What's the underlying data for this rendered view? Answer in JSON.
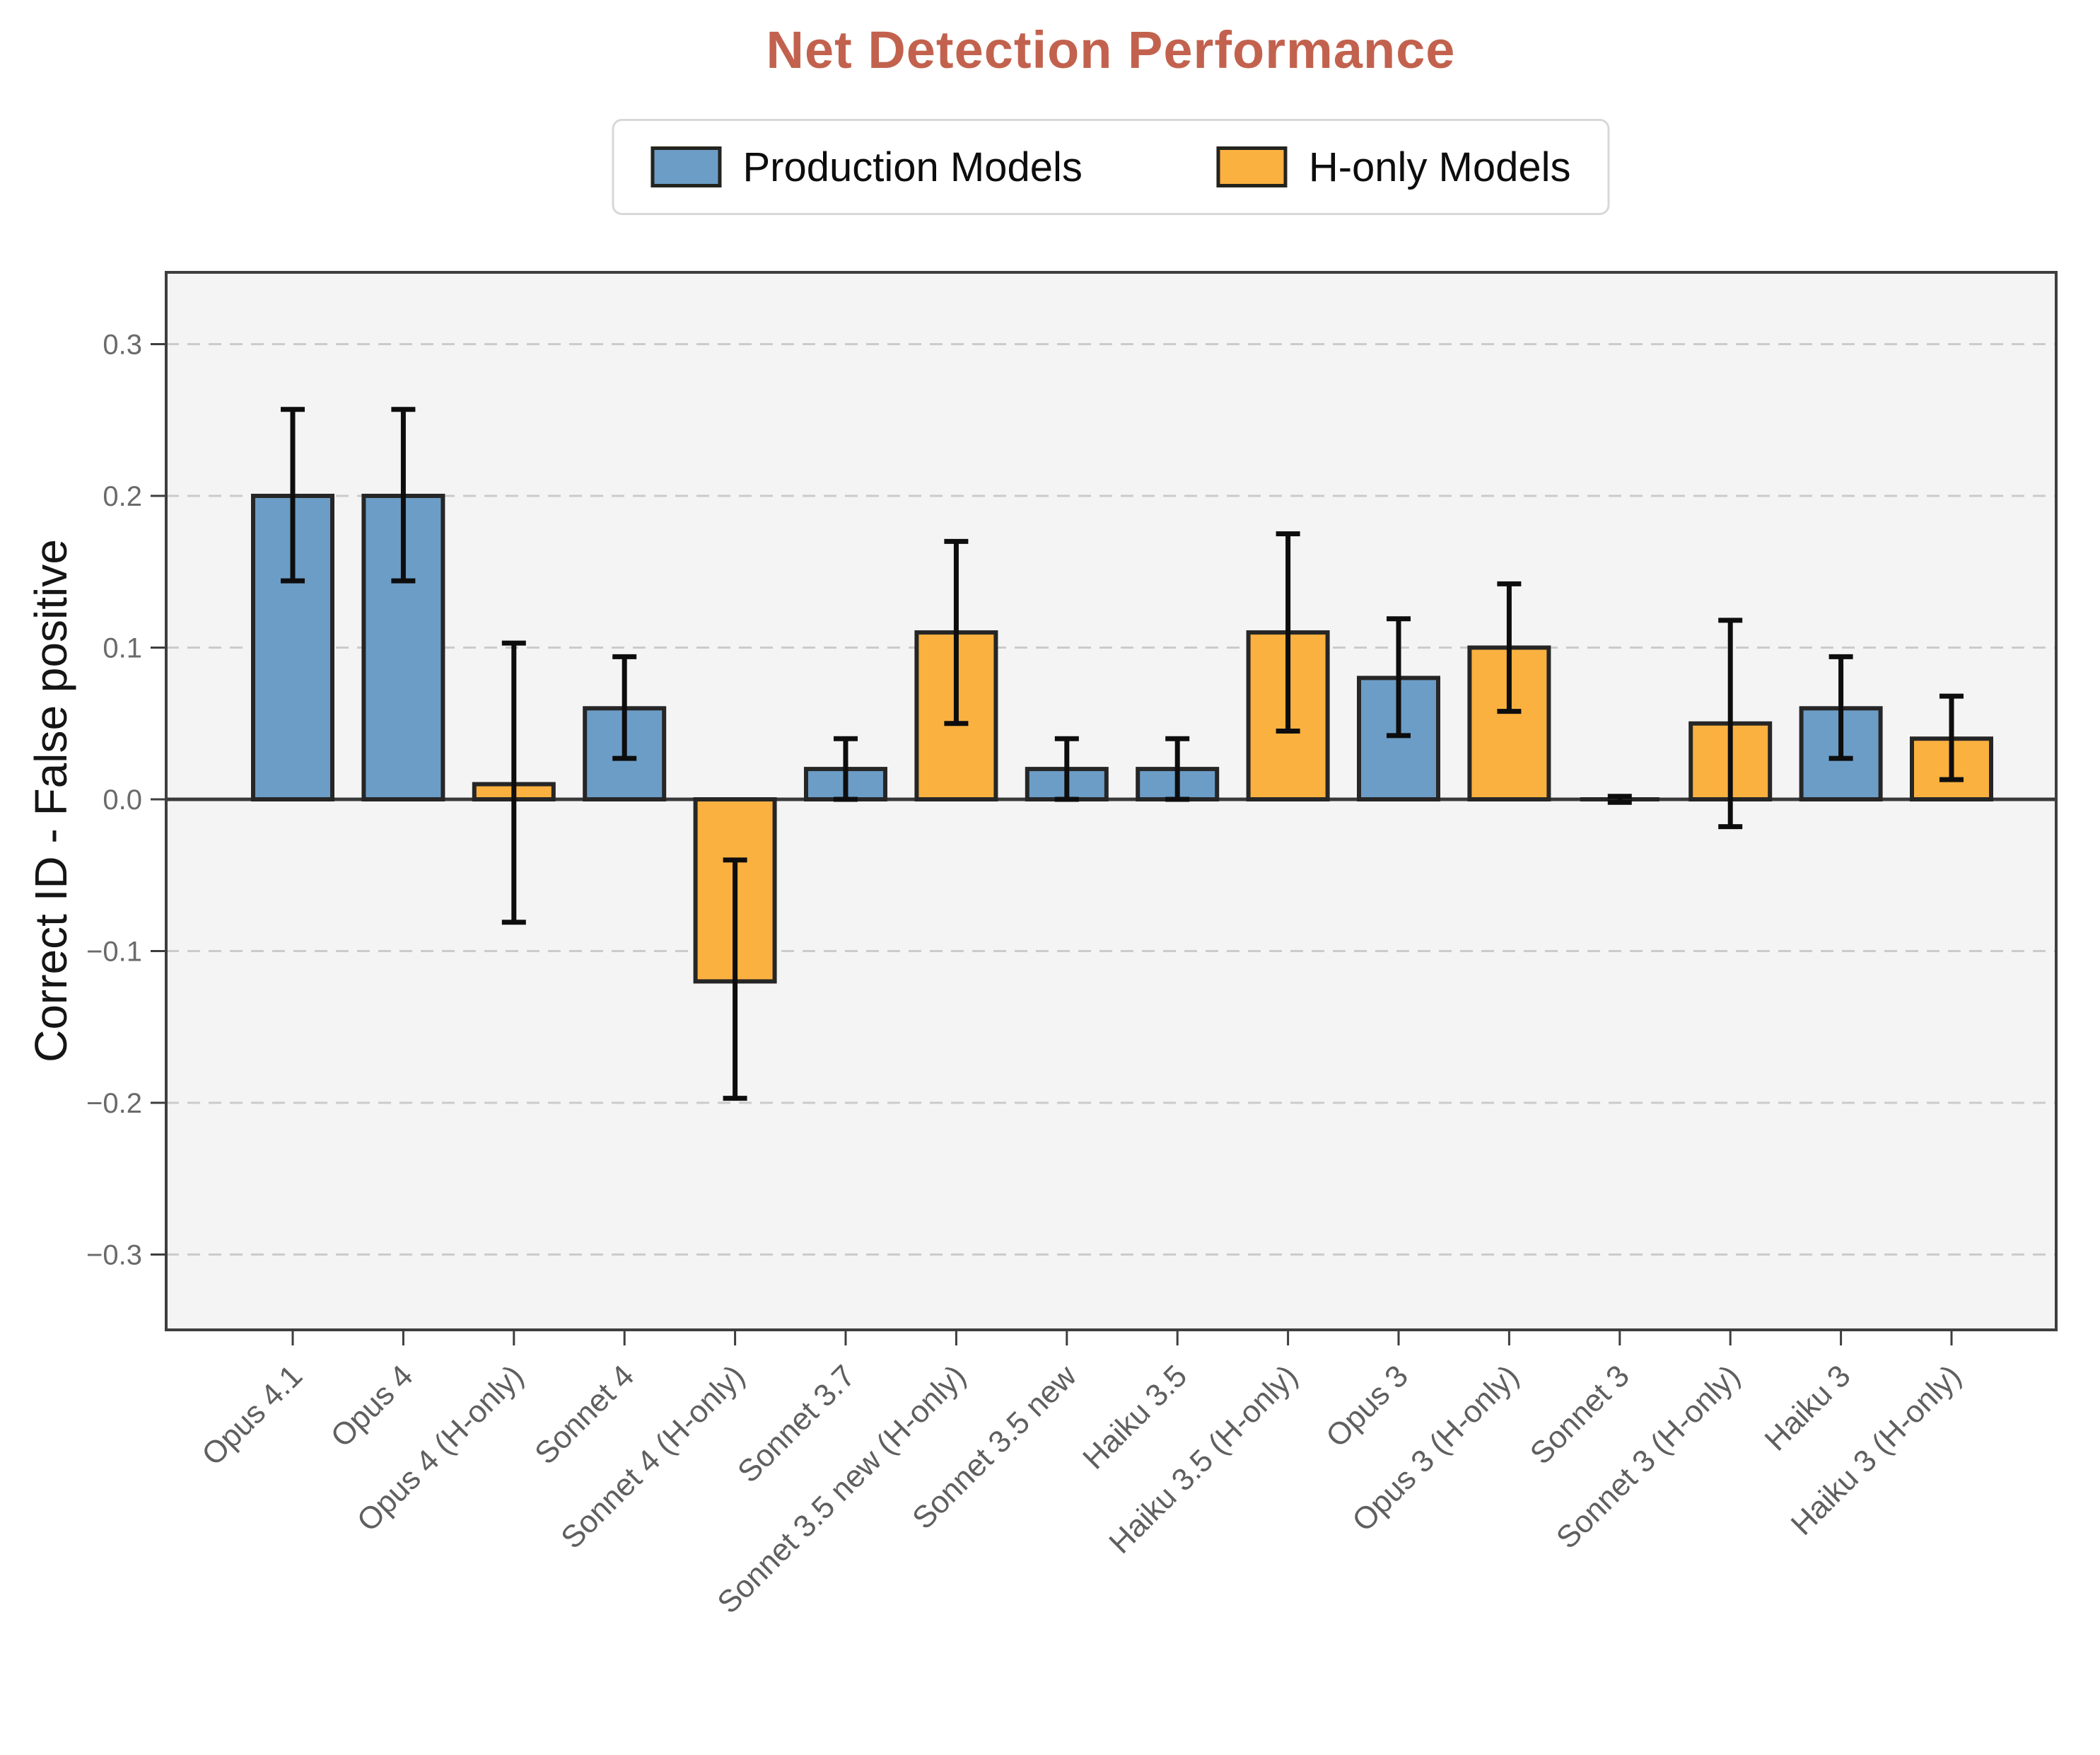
{
  "page": {
    "title": "Net Detection Performance"
  },
  "colors": {
    "production": "#6C9DC6",
    "h_only": "#FBB140",
    "title": "#C2624E",
    "plot_bg": "#F4F4F4",
    "grid": "#CBCBCB",
    "spine": "#3E3E3E",
    "zero_line": "#3A3A3A",
    "bar_edge": "#262626",
    "error_bar": "#0D0D0D",
    "y_tick_label": "#6A6A6A",
    "x_tick_label": "#5F5F5F",
    "axis_title_text": "#151515"
  },
  "legend": {
    "items": [
      {
        "label": "Production Models",
        "color_key": "production"
      },
      {
        "label": "H-only Models",
        "color_key": "h_only"
      }
    ]
  },
  "chart_data": {
    "type": "bar",
    "title": "Net Detection Performance",
    "xlabel": "",
    "ylabel": "Correct ID - False positive",
    "ylim": [
      -0.35,
      0.347
    ],
    "grid": "horizontal dashed",
    "legend_position": "upper center, outside axes",
    "error_bars": true,
    "yticks": [
      {
        "value": 0.3,
        "label": "0.3"
      },
      {
        "value": 0.2,
        "label": "0.2"
      },
      {
        "value": 0.1,
        "label": "0.1"
      },
      {
        "value": 0.0,
        "label": "0.0"
      },
      {
        "value": -0.1,
        "label": "−0.1"
      },
      {
        "value": -0.2,
        "label": "−0.2"
      },
      {
        "value": -0.3,
        "label": "−0.3"
      }
    ],
    "categories": [
      "Opus 4.1",
      "Opus 4",
      "Opus 4 (H-only)",
      "Sonnet 4",
      "Sonnet 4 (H-only)",
      "Sonnet 3.7",
      "Sonnet 3.5 new (H-only)",
      "Sonnet 3.5 new",
      "Haiku 3.5",
      "Haiku 3.5 (H-only)",
      "Opus 3",
      "Opus 3 (H-only)",
      "Sonnet 3",
      "Sonnet 3 (H-only)",
      "Haiku 3",
      "Haiku 3 (H-only)"
    ],
    "series": [
      {
        "name": "Production Models",
        "color_key": "production"
      },
      {
        "name": "H-only Models",
        "color_key": "h_only"
      }
    ],
    "bars": [
      {
        "label": "Opus 4.1",
        "series": "Production Models",
        "value": 0.2,
        "err_low": 0.144,
        "err_high": 0.257
      },
      {
        "label": "Opus 4",
        "series": "Production Models",
        "value": 0.2,
        "err_low": 0.144,
        "err_high": 0.257
      },
      {
        "label": "Opus 4 (H-only)",
        "series": "H-only Models",
        "value": 0.01,
        "err_low": -0.081,
        "err_high": 0.103
      },
      {
        "label": "Sonnet 4",
        "series": "Production Models",
        "value": 0.06,
        "err_low": 0.027,
        "err_high": 0.094
      },
      {
        "label": "Sonnet 4 (H-only)",
        "series": "H-only Models",
        "value": -0.12,
        "err_low": -0.197,
        "err_high": -0.04
      },
      {
        "label": "Sonnet 3.7",
        "series": "Production Models",
        "value": 0.02,
        "err_low": 0.0,
        "err_high": 0.04
      },
      {
        "label": "Sonnet 3.5 new (H-only)",
        "series": "H-only Models",
        "value": 0.11,
        "err_low": 0.05,
        "err_high": 0.17
      },
      {
        "label": "Sonnet 3.5 new",
        "series": "Production Models",
        "value": 0.02,
        "err_low": 0.0,
        "err_high": 0.04
      },
      {
        "label": "Haiku 3.5",
        "series": "Production Models",
        "value": 0.02,
        "err_low": 0.0,
        "err_high": 0.04
      },
      {
        "label": "Haiku 3.5 (H-only)",
        "series": "H-only Models",
        "value": 0.11,
        "err_low": 0.045,
        "err_high": 0.175
      },
      {
        "label": "Opus 3",
        "series": "Production Models",
        "value": 0.08,
        "err_low": 0.042,
        "err_high": 0.119
      },
      {
        "label": "Opus 3 (H-only)",
        "series": "H-only Models",
        "value": 0.1,
        "err_low": 0.058,
        "err_high": 0.142
      },
      {
        "label": "Sonnet 3",
        "series": "Production Models",
        "value": 0.0,
        "err_low": -0.002,
        "err_high": 0.002
      },
      {
        "label": "Sonnet 3 (H-only)",
        "series": "H-only Models",
        "value": 0.05,
        "err_low": -0.018,
        "err_high": 0.118
      },
      {
        "label": "Haiku 3",
        "series": "Production Models",
        "value": 0.06,
        "err_low": 0.027,
        "err_high": 0.094
      },
      {
        "label": "Haiku 3 (H-only)",
        "series": "H-only Models",
        "value": 0.04,
        "err_low": 0.013,
        "err_high": 0.068
      }
    ]
  }
}
